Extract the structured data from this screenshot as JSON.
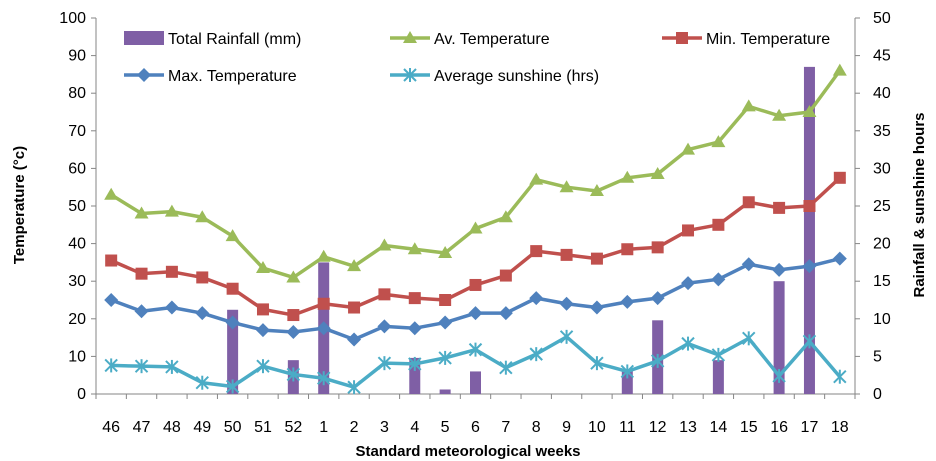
{
  "chart_data": {
    "type": "bar+line",
    "xlabel": "Standard meteorological weeks",
    "ylabel_left": "Temperature (°c)",
    "ylabel_right": "Rainfall & sunshine hours",
    "categories": [
      "46",
      "47",
      "48",
      "49",
      "50",
      "51",
      "52",
      "1",
      "2",
      "3",
      "4",
      "5",
      "6",
      "7",
      "8",
      "9",
      "10",
      "11",
      "12",
      "13",
      "14",
      "15",
      "16",
      "17",
      "18"
    ],
    "ylim_left": [
      0,
      100
    ],
    "yticks_left": [
      0,
      10,
      20,
      30,
      40,
      50,
      60,
      70,
      80,
      90,
      100
    ],
    "ylim_right": [
      0,
      50
    ],
    "yticks_right": [
      0,
      5,
      10,
      15,
      20,
      25,
      30,
      35,
      40,
      45,
      50
    ],
    "grid": false,
    "legend_position": "top",
    "bar_series": {
      "name": "Total Rainfall (mm)",
      "axis": "right",
      "color": "#7f5fa5",
      "values": [
        0,
        0,
        0,
        0,
        11.2,
        0,
        4.5,
        17.5,
        0,
        0,
        4.8,
        0.6,
        3.0,
        0,
        0,
        0,
        0,
        3.2,
        9.8,
        0,
        4.5,
        0,
        15.0,
        43.5,
        0
      ]
    },
    "line_series": [
      {
        "name": "Av. Temperature",
        "axis": "left",
        "color": "#9bbb59",
        "marker": "triangle",
        "values": [
          53,
          48,
          48.5,
          47,
          42,
          33.5,
          31,
          36.5,
          34,
          39.5,
          38.5,
          37.5,
          44,
          47,
          57,
          55,
          54,
          57.5,
          58.5,
          65,
          67,
          76.5,
          74,
          75,
          86
        ]
      },
      {
        "name": "Min. Temperature",
        "axis": "left",
        "color": "#c0504d",
        "marker": "square",
        "values": [
          35.5,
          32,
          32.5,
          31,
          28,
          22.5,
          21,
          24,
          23,
          26.5,
          25.5,
          25,
          29,
          31.5,
          38,
          37,
          36,
          38.5,
          39,
          43.5,
          45,
          51,
          49.5,
          50,
          57.5
        ]
      },
      {
        "name": "Max. Temperature",
        "axis": "left",
        "color": "#4f81bd",
        "marker": "diamond",
        "values": [
          25,
          22,
          23,
          21.5,
          19,
          17,
          16.5,
          17.5,
          14.5,
          18,
          17.5,
          19,
          21.5,
          21.5,
          25.5,
          24,
          23,
          24.5,
          25.5,
          29.5,
          30.5,
          34.5,
          33,
          34,
          36
        ]
      },
      {
        "name": "Average sunshine (hrs)",
        "axis": "right",
        "color": "#4bacc6",
        "marker": "asterisk",
        "values": [
          3.8,
          3.7,
          3.6,
          1.5,
          1.0,
          3.7,
          2.6,
          2.1,
          0.9,
          4.1,
          4.0,
          4.8,
          5.9,
          3.5,
          5.3,
          7.6,
          4.1,
          3.0,
          4.4,
          6.7,
          5.2,
          7.4,
          2.4,
          7.0,
          2.3
        ]
      }
    ],
    "legend": [
      {
        "label": "Total Rainfall (mm)",
        "series": "bar"
      },
      {
        "label": "Av. Temperature",
        "series": 0
      },
      {
        "label": "Min. Temperature",
        "series": 1
      },
      {
        "label": "Max. Temperature",
        "series": 2
      },
      {
        "label": "Average sunshine (hrs)",
        "series": 3
      }
    ]
  }
}
